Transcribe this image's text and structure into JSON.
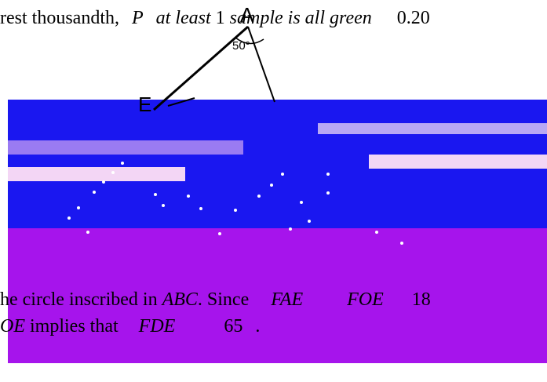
{
  "top": {
    "prefix": "rest thousandth,",
    "p": "P",
    "at_least": "at least",
    "one": "1",
    "sample_all_green": "sample is all green",
    "value": "0.20"
  },
  "diagram": {
    "vertex_a": "A",
    "vertex_e": "E",
    "angle": "50°"
  },
  "bottom": {
    "l1_text": "he circle inscribed in",
    "l1_abc": "ABC",
    "l1_since": ". Since",
    "l1_fae": "FAE",
    "l1_foe": "FOE",
    "l1_num": "18",
    "l2_oe": "OE",
    "l2_implies": "implies that",
    "l2_fde": "FDE",
    "l2_val": "65",
    "l2_dot": "."
  },
  "colors": {
    "blue_band": "#1a17f0",
    "purple_band": "#a614ec"
  }
}
